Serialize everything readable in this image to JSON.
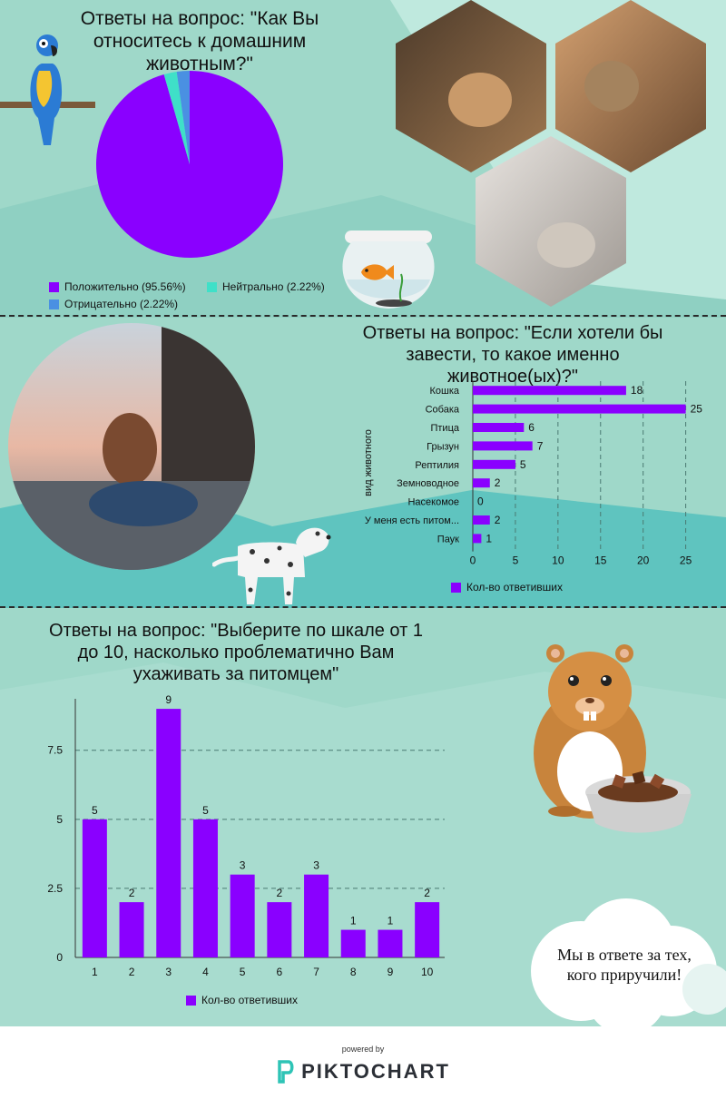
{
  "footer": {
    "powered_by": "powered by",
    "brand": "PIKTOCHART"
  },
  "cloud_text": "Мы в ответе за тех, кого приручили!",
  "colors": {
    "primary": "#8a00ff",
    "neutral": "#3fe0c8",
    "negative": "#4a90e2",
    "background": "#9fd8c9"
  },
  "illustrations": [
    "parrot-icon",
    "fishbowl-icon",
    "dalmatian-icon",
    "hamster-icon",
    "food-bowl-icon",
    "cloud-icon",
    "photo-dog-owner",
    "photo-dog-woman",
    "photo-cats-girl",
    "photo-poodle-girl"
  ],
  "chart_data": [
    {
      "type": "pie",
      "title": "Ответы на вопрос: \"Как Вы относитесь к домашним животным?\"",
      "categories": [
        "Положительно",
        "Нейтрально",
        "Отрицательно"
      ],
      "values": [
        95.56,
        2.22,
        2.22
      ],
      "legend": [
        "Положительно (95.56%)",
        "Нейтрально (2.22%)",
        "Отрицательно (2.22%)"
      ],
      "colors": [
        "#8a00ff",
        "#3fe0c8",
        "#4a90e2"
      ]
    },
    {
      "type": "bar",
      "orientation": "horizontal",
      "title": "Ответы на вопрос: \"Если хотели бы завести, то какое именно животное(ых)?\"",
      "ylabel": "вид животного",
      "categories": [
        "Кошка",
        "Собака",
        "Птица",
        "Грызун",
        "Рептилия",
        "Земноводное",
        "Насекомое",
        "У меня есть питом...",
        "Паук"
      ],
      "values": [
        18,
        25,
        6,
        7,
        5,
        2,
        0,
        2,
        1
      ],
      "xticks": [
        "0",
        "5",
        "10",
        "15",
        "20",
        "25"
      ],
      "xlim": [
        0,
        26
      ],
      "grid": true,
      "legend": "Кол-во ответивших"
    },
    {
      "type": "bar",
      "title": "Ответы на вопрос: \"Выберите по шкале от 1 до 10, насколько проблематично Вам ухаживать за питомцем\"",
      "categories": [
        "1",
        "2",
        "3",
        "4",
        "5",
        "6",
        "7",
        "8",
        "9",
        "10"
      ],
      "values": [
        5,
        2,
        9,
        5,
        3,
        2,
        3,
        1,
        1,
        2
      ],
      "yticks": [
        "0",
        "2.5",
        "5",
        "7.5"
      ],
      "ylim": [
        0,
        9.2
      ],
      "grid": true,
      "legend": "Кол-во ответивших"
    }
  ]
}
